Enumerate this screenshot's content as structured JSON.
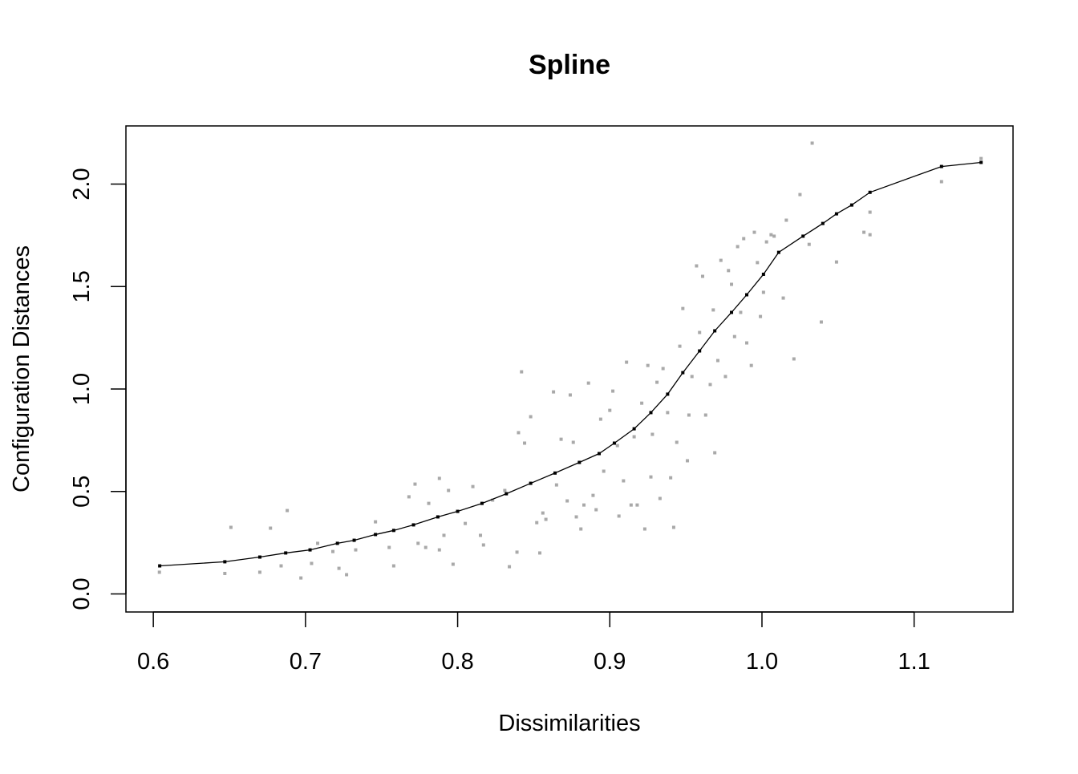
{
  "chart_data": {
    "type": "scatter",
    "title": "Spline",
    "xlabel": "Dissimilarities",
    "ylabel": "Configuration Distances",
    "xlim": [
      0.582,
      1.165
    ],
    "ylim": [
      -0.088,
      2.284
    ],
    "xticks": [
      0.6,
      0.7,
      0.8,
      0.9,
      1.0,
      1.1
    ],
    "xtick_labels": [
      "0.6",
      "0.7",
      "0.8",
      "0.9",
      "1.0",
      "1.1"
    ],
    "yticks": [
      0.0,
      0.5,
      1.0,
      1.5,
      2.0
    ],
    "ytick_labels": [
      "0.0",
      "0.5",
      "1.0",
      "1.5",
      "2.0"
    ],
    "grid": false,
    "colors": {
      "observed": "#a9a9a9",
      "fitted": "#000000"
    },
    "series": [
      {
        "name": "observed",
        "points": [
          [
            0.604,
            0.106
          ],
          [
            0.647,
            0.1
          ],
          [
            0.651,
            0.325
          ],
          [
            0.67,
            0.106
          ],
          [
            0.677,
            0.321
          ],
          [
            0.684,
            0.137
          ],
          [
            0.688,
            0.407
          ],
          [
            0.697,
            0.078
          ],
          [
            0.704,
            0.149
          ],
          [
            0.708,
            0.247
          ],
          [
            0.718,
            0.207
          ],
          [
            0.722,
            0.125
          ],
          [
            0.727,
            0.094
          ],
          [
            0.733,
            0.215
          ],
          [
            0.746,
            0.352
          ],
          [
            0.755,
            0.227
          ],
          [
            0.758,
            0.137
          ],
          [
            0.768,
            0.474
          ],
          [
            0.772,
            0.536
          ],
          [
            0.774,
            0.247
          ],
          [
            0.779,
            0.227
          ],
          [
            0.781,
            0.442
          ],
          [
            0.788,
            0.215
          ],
          [
            0.788,
            0.564
          ],
          [
            0.791,
            0.286
          ],
          [
            0.794,
            0.505
          ],
          [
            0.797,
            0.145
          ],
          [
            0.805,
            0.344
          ],
          [
            0.81,
            0.524
          ],
          [
            0.815,
            0.286
          ],
          [
            0.817,
            0.239
          ],
          [
            0.823,
            0.458
          ],
          [
            0.831,
            0.505
          ],
          [
            0.834,
            0.133
          ],
          [
            0.839,
            0.204
          ],
          [
            0.84,
            0.787
          ],
          [
            0.842,
            1.084
          ],
          [
            0.844,
            0.736
          ],
          [
            0.848,
            0.865
          ],
          [
            0.852,
            0.348
          ],
          [
            0.854,
            0.2
          ],
          [
            0.856,
            0.395
          ],
          [
            0.858,
            0.364
          ],
          [
            0.863,
            0.986
          ],
          [
            0.865,
            0.532
          ],
          [
            0.868,
            0.755
          ],
          [
            0.872,
            0.454
          ],
          [
            0.874,
            0.971
          ],
          [
            0.876,
            0.74
          ],
          [
            0.878,
            0.376
          ],
          [
            0.881,
            0.317
          ],
          [
            0.883,
            0.434
          ],
          [
            0.886,
            1.029
          ],
          [
            0.889,
            0.481
          ],
          [
            0.891,
            0.411
          ],
          [
            0.894,
            0.853
          ],
          [
            0.896,
            0.599
          ],
          [
            0.9,
            0.896
          ],
          [
            0.902,
            0.99
          ],
          [
            0.905,
            0.724
          ],
          [
            0.906,
            0.38
          ],
          [
            0.909,
            0.552
          ],
          [
            0.911,
            1.131
          ],
          [
            0.914,
            0.434
          ],
          [
            0.916,
            0.767
          ],
          [
            0.918,
            0.434
          ],
          [
            0.921,
            0.931
          ],
          [
            0.923,
            0.317
          ],
          [
            0.925,
            1.115
          ],
          [
            0.927,
            0.571
          ],
          [
            0.928,
            0.779
          ],
          [
            0.931,
            1.033
          ],
          [
            0.933,
            0.466
          ],
          [
            0.935,
            1.1
          ],
          [
            0.938,
            0.885
          ],
          [
            0.94,
            0.567
          ],
          [
            0.942,
            0.325
          ],
          [
            0.944,
            0.74
          ],
          [
            0.946,
            1.209
          ],
          [
            0.948,
            1.393
          ],
          [
            0.951,
            0.65
          ],
          [
            0.952,
            0.873
          ],
          [
            0.954,
            1.061
          ],
          [
            0.957,
            1.601
          ],
          [
            0.959,
            1.276
          ],
          [
            0.961,
            1.55
          ],
          [
            0.963,
            0.873
          ],
          [
            0.966,
            1.022
          ],
          [
            0.968,
            1.386
          ],
          [
            0.969,
            0.689
          ],
          [
            0.971,
            1.139
          ],
          [
            0.973,
            1.628
          ],
          [
            0.976,
            1.061
          ],
          [
            0.978,
            1.578
          ],
          [
            0.98,
            1.511
          ],
          [
            0.982,
            1.256
          ],
          [
            0.984,
            1.695
          ],
          [
            0.986,
            1.374
          ],
          [
            0.988,
            1.734
          ],
          [
            0.99,
            1.225
          ],
          [
            0.993,
            1.115
          ],
          [
            0.995,
            1.765
          ],
          [
            0.997,
            1.617
          ],
          [
            0.999,
            1.354
          ],
          [
            1.001,
            1.472
          ],
          [
            1.003,
            1.718
          ],
          [
            1.006,
            1.753
          ],
          [
            1.008,
            1.746
          ],
          [
            1.014,
            1.444
          ],
          [
            1.016,
            1.824
          ],
          [
            1.021,
            1.147
          ],
          [
            1.025,
            1.949
          ],
          [
            1.031,
            1.706
          ],
          [
            1.033,
            2.2
          ],
          [
            1.039,
            1.327
          ],
          [
            1.049,
            1.62
          ],
          [
            1.067,
            1.765
          ],
          [
            1.071,
            1.753
          ],
          [
            1.071,
            1.863
          ],
          [
            1.118,
            2.012
          ],
          [
            1.144,
            2.125
          ]
        ]
      },
      {
        "name": "fitted",
        "points": [
          [
            0.6042,
            0.137
          ],
          [
            0.647,
            0.157
          ],
          [
            0.67,
            0.18
          ],
          [
            0.687,
            0.2
          ],
          [
            0.703,
            0.215
          ],
          [
            0.721,
            0.247
          ],
          [
            0.732,
            0.262
          ],
          [
            0.746,
            0.29
          ],
          [
            0.758,
            0.31
          ],
          [
            0.771,
            0.337
          ],
          [
            0.787,
            0.376
          ],
          [
            0.8,
            0.403
          ],
          [
            0.816,
            0.442
          ],
          [
            0.832,
            0.489
          ],
          [
            0.848,
            0.54
          ],
          [
            0.864,
            0.59
          ],
          [
            0.88,
            0.642
          ],
          [
            0.893,
            0.685
          ],
          [
            0.903,
            0.736
          ],
          [
            0.916,
            0.806
          ],
          [
            0.927,
            0.885
          ],
          [
            0.938,
            0.975
          ],
          [
            0.948,
            1.08
          ],
          [
            0.959,
            1.186
          ],
          [
            0.969,
            1.284
          ],
          [
            0.98,
            1.374
          ],
          [
            0.99,
            1.46
          ],
          [
            1.001,
            1.56
          ],
          [
            1.011,
            1.667
          ],
          [
            1.027,
            1.746
          ],
          [
            1.04,
            1.808
          ],
          [
            1.049,
            1.855
          ],
          [
            1.059,
            1.898
          ],
          [
            1.071,
            1.96
          ],
          [
            1.118,
            2.086
          ],
          [
            1.144,
            2.106
          ]
        ]
      }
    ]
  }
}
